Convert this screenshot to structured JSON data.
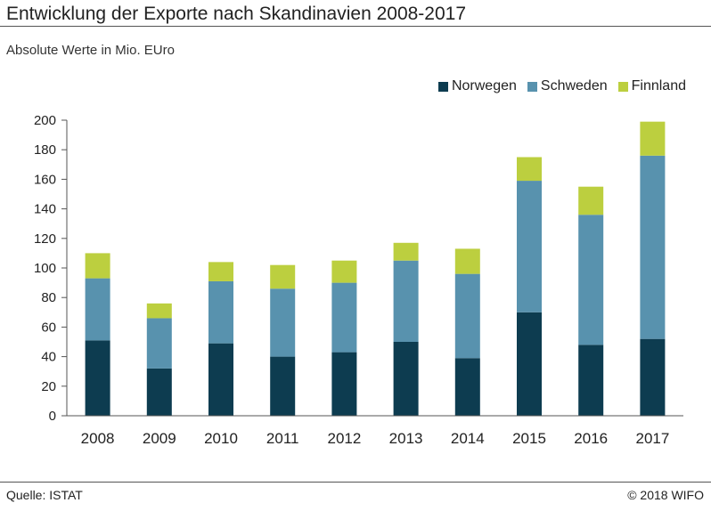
{
  "title": "Entwicklung der Exporte nach Skandinavien 2008-2017",
  "subtitle": "Absolute Werte in Mio. EUro",
  "footer": {
    "source": "Quelle: ISTAT",
    "copyright": "© 2018 WIFO"
  },
  "colors": {
    "Norwegen": "#0d3c50",
    "Schweden": "#5892ae",
    "Finnland": "#bccf3f"
  },
  "chart_data": {
    "type": "bar",
    "stacked": true,
    "categories": [
      "2008",
      "2009",
      "2010",
      "2011",
      "2012",
      "2013",
      "2014",
      "2015",
      "2016",
      "2017"
    ],
    "series": [
      {
        "name": "Norwegen",
        "values": [
          51,
          32,
          49,
          40,
          43,
          50,
          39,
          70,
          48,
          52
        ]
      },
      {
        "name": "Schweden",
        "values": [
          42,
          34,
          42,
          46,
          47,
          55,
          57,
          89,
          88,
          124
        ]
      },
      {
        "name": "Finnland",
        "values": [
          17,
          10,
          13,
          16,
          15,
          12,
          17,
          16,
          19,
          23
        ]
      }
    ],
    "yticks": [
      "0",
      "20",
      "40",
      "60",
      "80",
      "100",
      "120",
      "140",
      "160",
      "180",
      "200"
    ],
    "ylim": [
      0,
      200
    ],
    "grid": false,
    "legend_position": "top-right"
  }
}
